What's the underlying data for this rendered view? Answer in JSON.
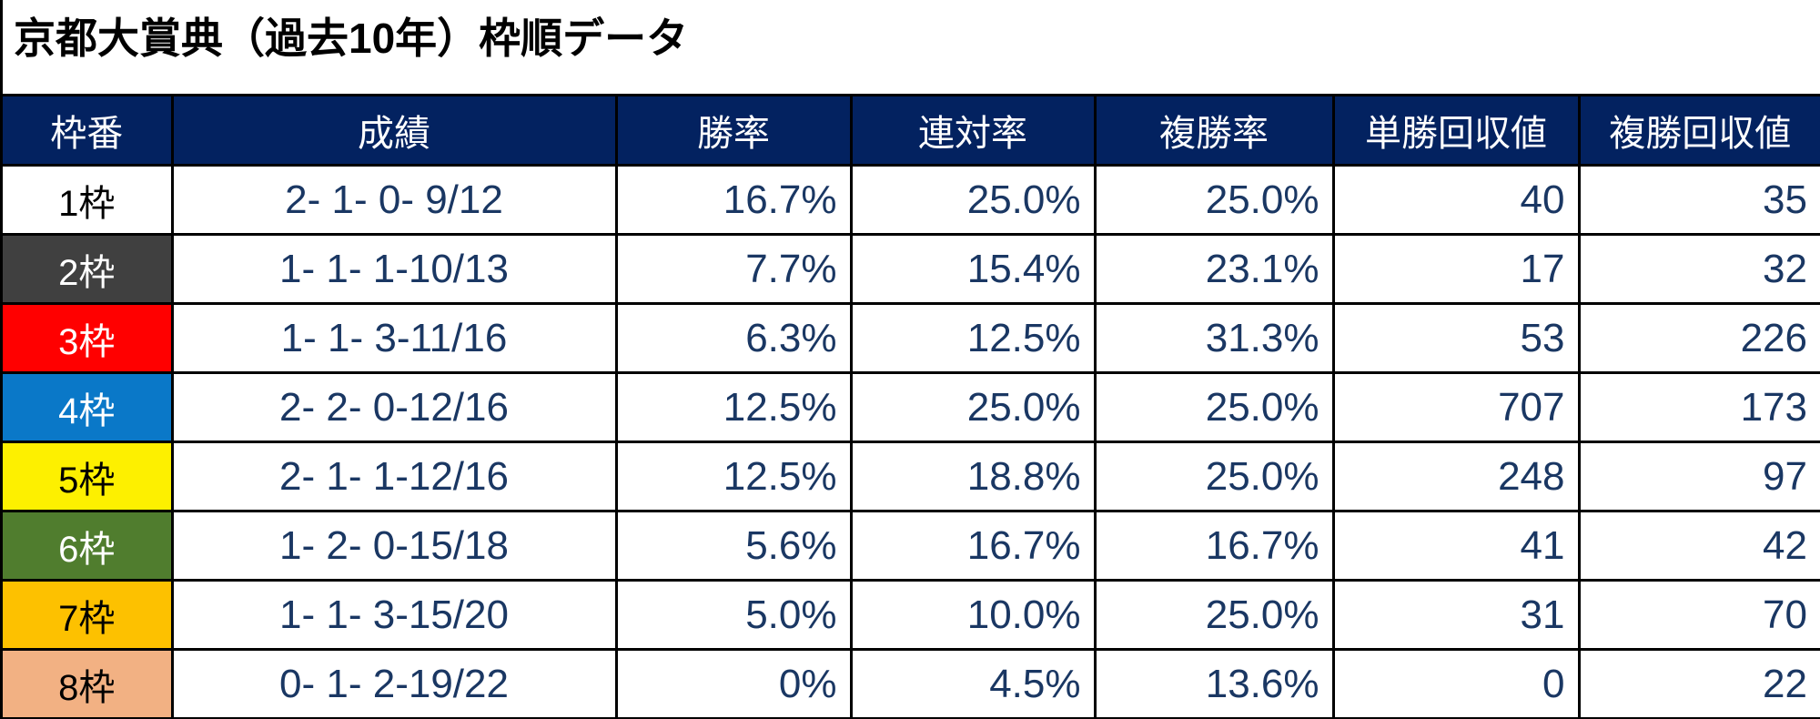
{
  "title": "京都大賞典（過去10年）枠順データ",
  "colors": {
    "header_bg": "#032260",
    "header_text": "#ffffff",
    "data_text": "#1a3763",
    "border": "#000000"
  },
  "table": {
    "columns": [
      {
        "label": "枠番"
      },
      {
        "label": "成績"
      },
      {
        "label": "勝率"
      },
      {
        "label": "連対率"
      },
      {
        "label": "複勝率"
      },
      {
        "label": "単勝回収値"
      },
      {
        "label": "複勝回収値"
      }
    ],
    "rows": [
      {
        "frame_label": "1枠",
        "bg": "#ffffff",
        "fg": "#000000",
        "record": "2- 1- 0- 9/12",
        "win_rate": "16.7%",
        "quinella_rate": "25.0%",
        "place_rate": "25.0%",
        "win_return": "40",
        "place_return": "35"
      },
      {
        "frame_label": "2枠",
        "bg": "#404040",
        "fg": "#ffffff",
        "record": "1- 1- 1-10/13",
        "win_rate": "7.7%",
        "quinella_rate": "15.4%",
        "place_rate": "23.1%",
        "win_return": "17",
        "place_return": "32"
      },
      {
        "frame_label": "3枠",
        "bg": "#ff0000",
        "fg": "#ffffff",
        "record": "1- 1- 3-11/16",
        "win_rate": "6.3%",
        "quinella_rate": "12.5%",
        "place_rate": "31.3%",
        "win_return": "53",
        "place_return": "226"
      },
      {
        "frame_label": "4枠",
        "bg": "#0a78c8",
        "fg": "#ffffff",
        "record": "2- 2- 0-12/16",
        "win_rate": "12.5%",
        "quinella_rate": "25.0%",
        "place_rate": "25.0%",
        "win_return": "707",
        "place_return": "173"
      },
      {
        "frame_label": "5枠",
        "bg": "#fdf000",
        "fg": "#000000",
        "record": "2- 1- 1-12/16",
        "win_rate": "12.5%",
        "quinella_rate": "18.8%",
        "place_rate": "25.0%",
        "win_return": "248",
        "place_return": "97"
      },
      {
        "frame_label": "6枠",
        "bg": "#507d2e",
        "fg": "#ffffff",
        "record": "1- 2- 0-15/18",
        "win_rate": "5.6%",
        "quinella_rate": "16.7%",
        "place_rate": "16.7%",
        "win_return": "41",
        "place_return": "42"
      },
      {
        "frame_label": "7枠",
        "bg": "#fdc100",
        "fg": "#000000",
        "record": "1- 1- 3-15/20",
        "win_rate": "5.0%",
        "quinella_rate": "10.0%",
        "place_rate": "25.0%",
        "win_return": "31",
        "place_return": "70"
      },
      {
        "frame_label": "8枠",
        "bg": "#f2b183",
        "fg": "#000000",
        "record": "0- 1- 2-19/22",
        "win_rate": "0%",
        "quinella_rate": "4.5%",
        "place_rate": "13.6%",
        "win_return": "0",
        "place_return": "22"
      }
    ]
  },
  "chart_data": {
    "type": "table",
    "title": "京都大賞典（過去10年）枠順データ",
    "columns": [
      "枠番",
      "成績",
      "勝率",
      "連対率",
      "複勝率",
      "単勝回収値",
      "複勝回収値"
    ],
    "rows": [
      [
        "1枠",
        "2- 1- 0- 9/12",
        "16.7%",
        "25.0%",
        "25.0%",
        40,
        35
      ],
      [
        "2枠",
        "1- 1- 1-10/13",
        "7.7%",
        "15.4%",
        "23.1%",
        17,
        32
      ],
      [
        "3枠",
        "1- 1- 3-11/16",
        "6.3%",
        "12.5%",
        "31.3%",
        53,
        226
      ],
      [
        "4枠",
        "2- 2- 0-12/16",
        "12.5%",
        "25.0%",
        "25.0%",
        707,
        173
      ],
      [
        "5枠",
        "2- 1- 1-12/16",
        "12.5%",
        "18.8%",
        "25.0%",
        248,
        97
      ],
      [
        "6枠",
        "1- 2- 0-15/18",
        "5.6%",
        "16.7%",
        "16.7%",
        41,
        42
      ],
      [
        "7枠",
        "1- 1- 3-15/20",
        "5.0%",
        "10.0%",
        "25.0%",
        31,
        70
      ],
      [
        "8枠",
        "0- 1- 2-19/22",
        "0%",
        "4.5%",
        "13.6%",
        0,
        22
      ]
    ],
    "frame_colors": [
      "#ffffff",
      "#404040",
      "#ff0000",
      "#0a78c8",
      "#fdf000",
      "#507d2e",
      "#fdc100",
      "#f2b183"
    ]
  }
}
